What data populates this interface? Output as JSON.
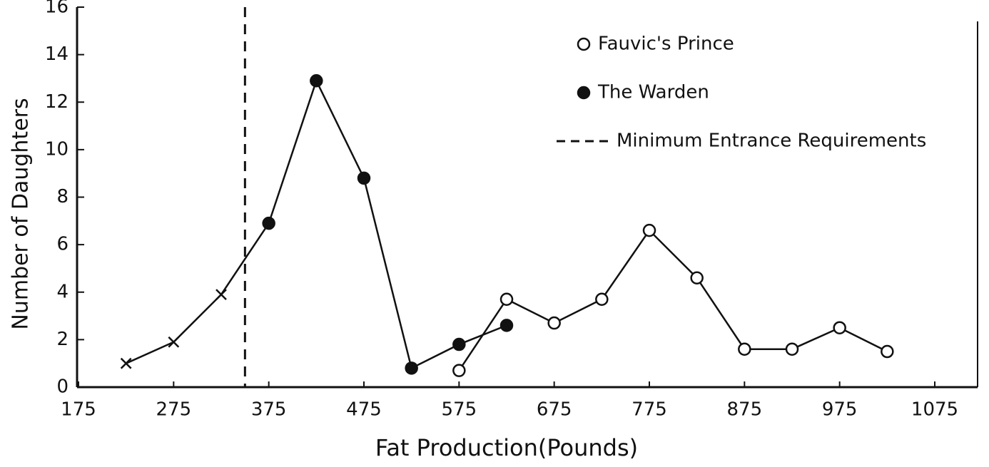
{
  "chart_data": {
    "type": "line",
    "xlabel": "Fat Production(Pounds)",
    "ylabel": "Number of Daughters",
    "xlim": [
      175,
      1120
    ],
    "xticks": [
      175,
      275,
      375,
      475,
      575,
      675,
      775,
      875,
      975,
      1075
    ],
    "ylim": [
      0,
      16
    ],
    "yticks": [
      0,
      2,
      4,
      6,
      8,
      10,
      12,
      14,
      16
    ],
    "legend": "upper right",
    "series": [
      {
        "name": "Fauvic's Prince",
        "color": "#111",
        "marker": "circle",
        "markers": [
          "circle",
          "circle",
          "circle",
          "circle",
          "circle",
          "circle",
          "circle",
          "circle",
          "circle",
          "circle"
        ],
        "x": [
          575,
          625,
          675,
          725,
          775,
          825,
          875,
          925,
          975,
          1025
        ],
        "values": [
          0.7,
          3.7,
          2.7,
          3.7,
          6.6,
          4.6,
          1.6,
          1.6,
          2.5,
          1.5
        ]
      },
      {
        "name": "The Warden",
        "color": "#111",
        "marker": "dot",
        "markers": [
          "x",
          "x",
          "x",
          "dot",
          "dot",
          "dot",
          "dot",
          "dot",
          "dot"
        ],
        "x": [
          225,
          275,
          325,
          375,
          425,
          475,
          525,
          575,
          625
        ],
        "values": [
          1.0,
          1.9,
          3.9,
          6.9,
          12.9,
          8.8,
          0.8,
          1.8,
          2.6
        ]
      }
    ],
    "threshold": {
      "x": 350,
      "label": "Minimum Entrance Requirements"
    }
  }
}
